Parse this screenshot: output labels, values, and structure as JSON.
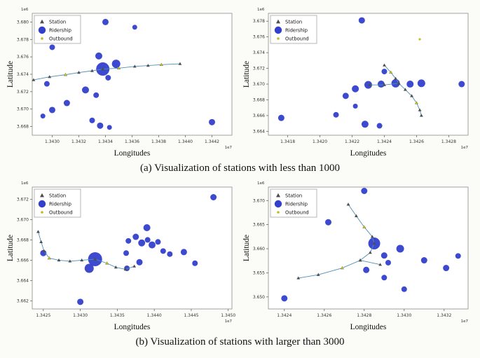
{
  "captions": {
    "a": "(a)  Visualization of stations with less than 1000",
    "b": "(b)  Visualization of stations with larger than 3000"
  },
  "legend": {
    "items": [
      {
        "name": "station",
        "label": "Station"
      },
      {
        "name": "ridership",
        "label": "Ridership"
      },
      {
        "name": "outbound",
        "label": "Outbound"
      }
    ]
  },
  "colors": {
    "ridership": "#3340cc",
    "station_line": "#4a90b8",
    "station_marker": "#4d4d4d",
    "outbound": "#bcbd22",
    "axis": "#8a8a8a",
    "tick_text": "#333333"
  },
  "chart_data": [
    {
      "id": "a-left",
      "type": "scatter",
      "xlabel": "Longitudes",
      "ylabel": "Latitude",
      "x_offset_label": "1e7",
      "y_offset_label": "1e6",
      "xlim": [
        1.34285,
        1.34435
      ],
      "ylim": [
        3.667,
        3.681
      ],
      "xticks": [
        1.343,
        1.3432,
        1.3434,
        1.3436,
        1.3438,
        1.344,
        1.3442
      ],
      "yticks": [
        3.668,
        3.67,
        3.672,
        3.674,
        3.676,
        3.678,
        3.68
      ],
      "xtick_decimals": 4,
      "ytick_decimals": 3,
      "ridership": [
        [
          1.3434,
          3.68,
          4.5
        ],
        [
          1.34362,
          3.6794,
          3.5
        ],
        [
          1.343,
          3.6771,
          4
        ],
        [
          1.34335,
          3.6761,
          5
        ],
        [
          1.34348,
          3.6752,
          6
        ],
        [
          1.34338,
          3.6746,
          9.5
        ],
        [
          1.34342,
          3.6736,
          4
        ],
        [
          1.34296,
          3.6729,
          4
        ],
        [
          1.34325,
          3.6722,
          5
        ],
        [
          1.34333,
          3.6716,
          4
        ],
        [
          1.34311,
          3.6707,
          4.5
        ],
        [
          1.343,
          3.6699,
          4.5
        ],
        [
          1.34293,
          3.6692,
          3.5
        ],
        [
          1.3433,
          3.6687,
          4
        ],
        [
          1.34336,
          3.6681,
          4.5
        ],
        [
          1.34343,
          3.6679,
          3.5
        ],
        [
          1.3442,
          3.6685,
          4.5
        ]
      ],
      "station_paths": [
        [
          [
            1.34286,
            3.67335
          ],
          [
            1.34298,
            3.6737
          ],
          [
            1.3431,
            3.67395
          ],
          [
            1.3432,
            3.6742
          ],
          [
            1.3433,
            3.6744
          ],
          [
            1.34338,
            3.6746
          ],
          [
            1.3435,
            3.6747
          ],
          [
            1.34362,
            3.6749
          ],
          [
            1.34372,
            3.675
          ],
          [
            1.34382,
            3.6751
          ],
          [
            1.34396,
            3.6752
          ]
        ]
      ],
      "outbound": [
        [
          1.3431,
          3.67395
        ],
        [
          1.3435,
          3.6747
        ],
        [
          1.34382,
          3.6751
        ]
      ]
    },
    {
      "id": "a-right",
      "type": "scatter",
      "xlabel": "Longitudes",
      "ylabel": "Latitude",
      "x_offset_label": "1e7",
      "y_offset_label": "1e6",
      "xlim": [
        1.34168,
        1.34292
      ],
      "ylim": [
        3.6635,
        3.679
      ],
      "xticks": [
        1.3418,
        1.342,
        1.3422,
        1.3424,
        1.3426,
        1.3428
      ],
      "yticks": [
        3.664,
        3.666,
        3.668,
        3.67,
        3.672,
        3.674,
        3.676,
        3.678
      ],
      "xtick_decimals": 4,
      "ytick_decimals": 3,
      "ridership": [
        [
          1.34226,
          3.6781,
          4.5
        ],
        [
          1.34176,
          3.6657,
          4.5
        ],
        [
          1.3421,
          3.6661,
          4
        ],
        [
          1.34216,
          3.6685,
          4.5
        ],
        [
          1.34222,
          3.6694,
          5
        ],
        [
          1.3423,
          3.6699,
          5.5
        ],
        [
          1.34238,
          3.67,
          5
        ],
        [
          1.34247,
          3.6701,
          6
        ],
        [
          1.34256,
          3.67,
          5
        ],
        [
          1.34263,
          3.6701,
          5.5
        ],
        [
          1.34288,
          3.67,
          4.5
        ],
        [
          1.3424,
          3.6716,
          4
        ],
        [
          1.34228,
          3.6649,
          5
        ],
        [
          1.34237,
          3.6647,
          4
        ],
        [
          1.34222,
          3.6672,
          3.5
        ]
      ],
      "station_paths": [
        [
          [
            1.3424,
            3.6724
          ],
          [
            1.34244,
            3.6715
          ],
          [
            1.34247,
            3.6707
          ],
          [
            1.34249,
            3.6701
          ],
          [
            1.34253,
            3.6693
          ],
          [
            1.34257,
            3.6685
          ],
          [
            1.3426,
            3.6676
          ],
          [
            1.34262,
            3.6667
          ],
          [
            1.34263,
            3.666
          ]
        ],
        [
          [
            1.34249,
            3.6701
          ],
          [
            1.3424,
            3.6699
          ],
          [
            1.34231,
            3.6699
          ]
        ]
      ],
      "outbound": [
        [
          1.34244,
          3.6715
        ],
        [
          1.3426,
          3.6676
        ],
        [
          1.34262,
          3.6757
        ]
      ]
    },
    {
      "id": "b-left",
      "type": "scatter",
      "xlabel": "Longitudes",
      "ylabel": "Latitude",
      "x_offset_label": "1e7",
      "y_offset_label": "1e6",
      "xlim": [
        1.34235,
        1.34505
      ],
      "ylim": [
        3.6612,
        3.6732
      ],
      "xticks": [
        1.3425,
        1.343,
        1.3435,
        1.344,
        1.3445,
        1.345
      ],
      "yticks": [
        3.662,
        3.664,
        3.666,
        3.668,
        3.67,
        3.672
      ],
      "xtick_decimals": 4,
      "ytick_decimals": 3,
      "ridership": [
        [
          1.3448,
          3.6722,
          4.5
        ],
        [
          1.3439,
          3.6692,
          5
        ],
        [
          1.34375,
          3.6683,
          4.5
        ],
        [
          1.34365,
          3.6679,
          4
        ],
        [
          1.34383,
          3.6677,
          5
        ],
        [
          1.34391,
          3.668,
          4
        ],
        [
          1.34397,
          3.6675,
          5
        ],
        [
          1.34405,
          3.6678,
          4
        ],
        [
          1.34412,
          3.6669,
          4
        ],
        [
          1.34421,
          3.6666,
          4
        ],
        [
          1.3444,
          3.6668,
          4.5
        ],
        [
          1.34362,
          3.6667,
          4
        ],
        [
          1.3438,
          3.6658,
          4.5
        ],
        [
          1.34363,
          3.6652,
          4
        ],
        [
          1.3425,
          3.6667,
          4.5
        ],
        [
          1.3432,
          3.6661,
          10
        ],
        [
          1.34312,
          3.6652,
          6.5
        ],
        [
          1.343,
          3.6619,
          4.5
        ],
        [
          1.34455,
          3.6657,
          4
        ]
      ],
      "station_paths": [
        [
          [
            1.34243,
            3.6688
          ],
          [
            1.34247,
            3.6678
          ],
          [
            1.34251,
            3.6669
          ],
          [
            1.34258,
            3.6662
          ],
          [
            1.34271,
            3.666
          ],
          [
            1.34286,
            3.6659
          ],
          [
            1.34302,
            3.666
          ],
          [
            1.3432,
            3.6661
          ],
          [
            1.34336,
            3.6657
          ],
          [
            1.34348,
            3.6653
          ],
          [
            1.34361,
            3.6651
          ],
          [
            1.34373,
            3.6654
          ]
        ]
      ],
      "outbound": [
        [
          1.34258,
          3.6662
        ],
        [
          1.34336,
          3.6657
        ]
      ]
    },
    {
      "id": "b-right",
      "type": "scatter",
      "xlabel": "Longitudes",
      "ylabel": "Latitude",
      "x_offset_label": "1e7",
      "y_offset_label": "1e6",
      "xlim": [
        1.34232,
        1.34332
      ],
      "ylim": [
        3.6475,
        3.6728
      ],
      "xticks": [
        1.3424,
        1.3426,
        1.3428,
        1.343,
        1.3432
      ],
      "yticks": [
        3.65,
        3.655,
        3.66,
        3.665,
        3.67
      ],
      "xtick_decimals": 4,
      "ytick_decimals": 3,
      "ridership": [
        [
          1.3428,
          3.672,
          4.5
        ],
        [
          1.34262,
          3.6655,
          4.5
        ],
        [
          1.34285,
          3.6611,
          8.5
        ],
        [
          1.34298,
          3.66,
          5.5
        ],
        [
          1.3429,
          3.6586,
          4.5
        ],
        [
          1.34292,
          3.6571,
          4
        ],
        [
          1.34281,
          3.6556,
          4.5
        ],
        [
          1.3429,
          3.654,
          4
        ],
        [
          1.3431,
          3.6576,
          4.5
        ],
        [
          1.34321,
          3.656,
          4.5
        ],
        [
          1.343,
          3.6516,
          4
        ],
        [
          1.3424,
          3.6497,
          4.5
        ],
        [
          1.34327,
          3.6585,
          4
        ]
      ],
      "station_paths": [
        [
          [
            1.34272,
            3.6692
          ],
          [
            1.34276,
            3.6668
          ],
          [
            1.3428,
            3.6645
          ],
          [
            1.34284,
            3.6625
          ],
          [
            1.34285,
            3.6611
          ],
          [
            1.34283,
            3.6592
          ],
          [
            1.34278,
            3.6576
          ],
          [
            1.34269,
            3.656
          ],
          [
            1.34257,
            3.6546
          ],
          [
            1.34247,
            3.6539
          ]
        ],
        [
          [
            1.34278,
            3.6576
          ],
          [
            1.34288,
            3.6567
          ]
        ]
      ],
      "outbound": [
        [
          1.3428,
          3.6645
        ],
        [
          1.34269,
          3.656
        ]
      ]
    }
  ]
}
